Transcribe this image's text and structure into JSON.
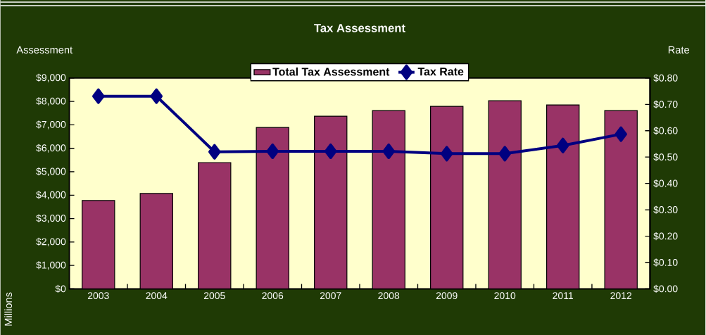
{
  "chart_data": {
    "type": "bar",
    "title": "Tax Assessment",
    "ylabel": "Assessment",
    "y2label": "Rate",
    "annotations": [
      "Millions"
    ],
    "categories": [
      "2003",
      "2004",
      "2005",
      "2006",
      "2007",
      "2008",
      "2009",
      "2010",
      "2011",
      "2012"
    ],
    "series": [
      {
        "name": "Total Tax Assessment",
        "color": "#993366",
        "values": [
          3770,
          4070,
          5390,
          6890,
          7370,
          7610,
          7790,
          8030,
          7850,
          7610
        ]
      },
      {
        "name": "Tax Rate",
        "type": "line",
        "axis": "y2",
        "marker": "diamond",
        "color": "#000080",
        "values": [
          0.731,
          0.731,
          0.52,
          0.522,
          0.522,
          0.522,
          0.513,
          0.513,
          0.544,
          0.587
        ]
      }
    ],
    "ylim": [
      0,
      9000
    ],
    "yticks": [
      {
        "value": 0,
        "label": "$0"
      },
      {
        "value": 1000,
        "label": "$1,000"
      },
      {
        "value": 2000,
        "label": "$2,000"
      },
      {
        "value": 3000,
        "label": "$3,000"
      },
      {
        "value": 4000,
        "label": "$4,000"
      },
      {
        "value": 5000,
        "label": "$5,000"
      },
      {
        "value": 6000,
        "label": "$6,000"
      },
      {
        "value": 7000,
        "label": "$7,000"
      },
      {
        "value": 8000,
        "label": "$8,000"
      },
      {
        "value": 9000,
        "label": "$9,000"
      }
    ],
    "y2lim": [
      0,
      0.8
    ],
    "y2ticks": [
      {
        "value": 0,
        "label": "$0.00"
      },
      {
        "value": 0.1,
        "label": "$0.10"
      },
      {
        "value": 0.2,
        "label": "$0.20"
      },
      {
        "value": 0.3,
        "label": "$0.30"
      },
      {
        "value": 0.4,
        "label": "$0.40"
      },
      {
        "value": 0.5,
        "label": "$0.50"
      },
      {
        "value": 0.6,
        "label": "$0.60"
      },
      {
        "value": 0.7,
        "label": "$0.70"
      },
      {
        "value": 0.8,
        "label": "$0.80"
      }
    ],
    "legend": "top",
    "grid": false
  }
}
